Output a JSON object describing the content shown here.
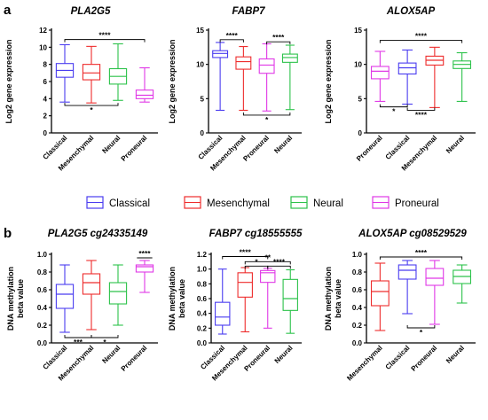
{
  "panels": {
    "a": "a",
    "b": "b"
  },
  "legend": [
    {
      "name": "Classical",
      "color": "#4a3cf0"
    },
    {
      "name": "Mesenchymal",
      "color": "#ee2c2c"
    },
    {
      "name": "Neural",
      "color": "#2cc24a"
    },
    {
      "name": "Proneural",
      "color": "#e038e6"
    }
  ],
  "chart_data": [
    {
      "type": "box",
      "title": "PLA2G5",
      "ylabel": "Log2 gene expression",
      "ylim": [
        0,
        12
      ],
      "yticks": [
        0,
        2,
        4,
        6,
        8,
        10,
        12
      ],
      "categories": [
        "Classical",
        "Mesenchymal",
        "Neural",
        "Proneural"
      ],
      "boxes": [
        {
          "group": "Classical",
          "min": 3.6,
          "q1": 6.5,
          "median": 7.3,
          "q3": 8.1,
          "max": 10.3
        },
        {
          "group": "Mesenchymal",
          "min": 3.5,
          "q1": 6.2,
          "median": 7.0,
          "q3": 8.0,
          "max": 10.1
        },
        {
          "group": "Neural",
          "min": 3.8,
          "q1": 5.7,
          "median": 6.6,
          "q3": 7.5,
          "max": 10.4
        },
        {
          "group": "Proneural",
          "min": 3.6,
          "q1": 4.0,
          "median": 4.4,
          "q3": 5.0,
          "max": 7.6
        }
      ],
      "annotations": [
        {
          "label": "*",
          "from": 0,
          "to": 2,
          "y": 3.2,
          "side": "below"
        },
        {
          "label": "****",
          "from": 0,
          "to": 3,
          "y": 10.9,
          "side": "above"
        }
      ]
    },
    {
      "type": "box",
      "title": "FABP7",
      "ylabel": "Log2 gene expression",
      "ylim": [
        0,
        15
      ],
      "yticks": [
        0,
        5,
        10,
        15
      ],
      "categories": [
        "Classical",
        "Mesenchymal",
        "Proneural",
        "Neural"
      ],
      "boxes": [
        {
          "group": "Classical",
          "min": 3.3,
          "q1": 11.0,
          "median": 11.6,
          "q3": 12.0,
          "max": 13.2
        },
        {
          "group": "Mesenchymal",
          "min": 3.3,
          "q1": 9.3,
          "median": 10.4,
          "q3": 11.1,
          "max": 12.6
        },
        {
          "group": "Proneural",
          "min": 3.2,
          "q1": 8.7,
          "median": 9.9,
          "q3": 10.8,
          "max": 13.0
        },
        {
          "group": "Neural",
          "min": 3.4,
          "q1": 10.3,
          "median": 11.0,
          "q3": 11.5,
          "max": 12.8
        }
      ],
      "annotations": [
        {
          "label": "****",
          "from": 0,
          "to": 1,
          "y": 13.6,
          "side": "above"
        },
        {
          "label": "****",
          "from": 2,
          "to": 3,
          "y": 13.3,
          "side": "above"
        },
        {
          "label": "*",
          "from": 1,
          "to": 3,
          "y": 2.6,
          "side": "below"
        }
      ]
    },
    {
      "type": "box",
      "title": "ALOX5AP",
      "ylabel": "Log2 gene expression",
      "ylim": [
        0,
        15
      ],
      "yticks": [
        0,
        5,
        10,
        15
      ],
      "categories": [
        "Proneural",
        "Classical",
        "Mesenchymal",
        "Neural"
      ],
      "boxes": [
        {
          "group": "Proneural",
          "min": 4.6,
          "q1": 7.9,
          "median": 9.0,
          "q3": 9.7,
          "max": 11.9
        },
        {
          "group": "Classical",
          "min": 4.2,
          "q1": 8.6,
          "median": 9.5,
          "q3": 10.2,
          "max": 12.1
        },
        {
          "group": "Mesenchymal",
          "min": 3.7,
          "q1": 9.9,
          "median": 10.6,
          "q3": 11.2,
          "max": 12.5
        },
        {
          "group": "Neural",
          "min": 4.6,
          "q1": 9.4,
          "median": 10.0,
          "q3": 10.5,
          "max": 11.7
        }
      ],
      "annotations": [
        {
          "label": "****",
          "from": 0,
          "to": 3,
          "y": 13.5,
          "side": "above"
        },
        {
          "label": "*",
          "from": 0,
          "to": 1,
          "y": 3.8,
          "side": "below"
        },
        {
          "label": "****",
          "from": 1,
          "to": 2,
          "y": 3.3,
          "side": "below"
        }
      ]
    },
    {
      "type": "box",
      "title": "PLA2G5 cg24335149",
      "ylabel": [
        "DNA methylation",
        "beta value"
      ],
      "ylim": [
        0,
        1
      ],
      "yticks": [
        0.0,
        0.2,
        0.4,
        0.6,
        0.8,
        1.0
      ],
      "categories": [
        "Classical",
        "Mesenchymal",
        "Neural",
        "Proneural"
      ],
      "boxes": [
        {
          "group": "Classical",
          "min": 0.12,
          "q1": 0.39,
          "median": 0.55,
          "q3": 0.66,
          "max": 0.88
        },
        {
          "group": "Mesenchymal",
          "min": 0.15,
          "q1": 0.55,
          "median": 0.68,
          "q3": 0.78,
          "max": 0.93
        },
        {
          "group": "Neural",
          "min": 0.2,
          "q1": 0.44,
          "median": 0.58,
          "q3": 0.68,
          "max": 0.88
        },
        {
          "group": "Proneural",
          "min": 0.57,
          "q1": 0.8,
          "median": 0.86,
          "q3": 0.88,
          "max": 0.93
        }
      ],
      "annotations": [
        {
          "label": "****",
          "from": 3,
          "to": 3,
          "y": 0.96,
          "side": "above"
        },
        {
          "label": "***",
          "from": 0,
          "to": 1,
          "y": 0.06,
          "side": "below"
        },
        {
          "label": "*",
          "from": 1,
          "to": 2,
          "y": 0.06,
          "side": "below"
        }
      ]
    },
    {
      "type": "box",
      "title": "FABP7 cg18555555",
      "ylabel": [
        "DNA methylation",
        "beta value"
      ],
      "ylim": [
        0,
        1.2
      ],
      "yticks": [
        0.0,
        0.2,
        0.4,
        0.6,
        0.8,
        1.0,
        1.2
      ],
      "categories": [
        "Classical",
        "Mesenchymal",
        "Proneural",
        "Neural"
      ],
      "boxes": [
        {
          "group": "Classical",
          "min": 0.12,
          "q1": 0.24,
          "median": 0.35,
          "q3": 0.55,
          "max": 1.0
        },
        {
          "group": "Mesenchymal",
          "min": 0.15,
          "q1": 0.62,
          "median": 0.82,
          "q3": 0.95,
          "max": 1.02
        },
        {
          "group": "Proneural",
          "min": 0.2,
          "q1": 0.82,
          "median": 0.95,
          "q3": 0.98,
          "max": 1.01
        },
        {
          "group": "Neural",
          "min": 0.13,
          "q1": 0.44,
          "median": 0.6,
          "q3": 0.86,
          "max": 0.99
        }
      ],
      "annotations": [
        {
          "label": "****",
          "from": 0,
          "to": 2,
          "y": 1.17,
          "side": "above"
        },
        {
          "label": "**",
          "from": 1,
          "to": 3,
          "y": 1.1,
          "side": "above"
        },
        {
          "label": "*",
          "from": 1,
          "to": 2,
          "y": 1.04,
          "side": "above"
        },
        {
          "label": "****",
          "from": 2,
          "to": 3,
          "y": 1.04,
          "side": "above"
        }
      ]
    },
    {
      "type": "box",
      "title": "ALOX5AP cg08529529",
      "ylabel": [
        "DNA methylation",
        "beta value"
      ],
      "ylim": [
        0,
        1
      ],
      "yticks": [
        0.0,
        0.2,
        0.4,
        0.6,
        0.8,
        1.0
      ],
      "categories": [
        "Mesenchymal",
        "Classical",
        "Proneural",
        "Neural"
      ],
      "boxes": [
        {
          "group": "Mesenchymal",
          "min": 0.14,
          "q1": 0.42,
          "median": 0.58,
          "q3": 0.7,
          "max": 0.9
        },
        {
          "group": "Classical",
          "min": 0.33,
          "q1": 0.72,
          "median": 0.82,
          "q3": 0.88,
          "max": 0.93
        },
        {
          "group": "Proneural",
          "min": 0.21,
          "q1": 0.65,
          "median": 0.73,
          "q3": 0.84,
          "max": 0.93
        },
        {
          "group": "Neural",
          "min": 0.45,
          "q1": 0.67,
          "median": 0.75,
          "q3": 0.82,
          "max": 0.88
        }
      ],
      "annotations": [
        {
          "label": "****",
          "from": 0,
          "to": 3,
          "y": 0.97,
          "side": "above"
        },
        {
          "label": "*",
          "from": 1,
          "to": 2,
          "y": 0.17,
          "side": "below"
        }
      ]
    }
  ]
}
